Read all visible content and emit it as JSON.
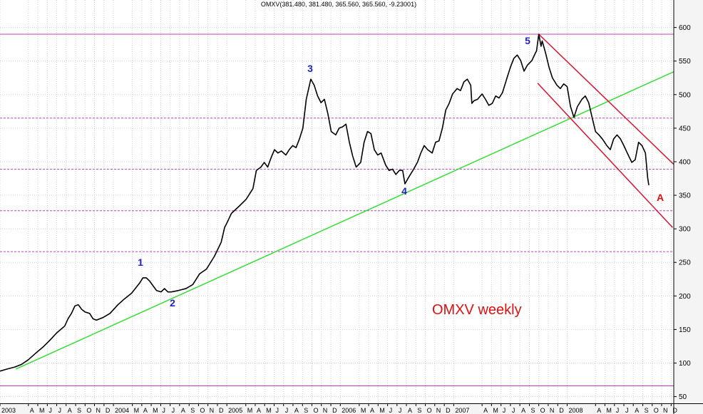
{
  "chart_data": {
    "type": "line",
    "header": "OMXV(381.480, 381.480, 365.560, 365.560, -9.23001)",
    "note": "OMXV weekly",
    "color": "#000000",
    "grid": true,
    "xlim": [
      2003,
      2008.94
    ],
    "ylim": [
      40,
      641
    ],
    "yticks": [
      50,
      100,
      150,
      200,
      250,
      300,
      350,
      400,
      450,
      500,
      550,
      600
    ],
    "xticks": [
      {
        "value": 2003,
        "label": "2003"
      },
      {
        "value": 2003.25,
        "label": "A"
      },
      {
        "value": 2003.333,
        "label": "M"
      },
      {
        "value": 2003.417,
        "label": "J"
      },
      {
        "value": 2003.5,
        "label": "J"
      },
      {
        "value": 2003.583,
        "label": "A"
      },
      {
        "value": 2003.667,
        "label": "S"
      },
      {
        "value": 2003.75,
        "label": "O"
      },
      {
        "value": 2003.833,
        "label": "N"
      },
      {
        "value": 2003.917,
        "label": "D"
      },
      {
        "value": 2004,
        "label": "2004"
      },
      {
        "value": 2004.167,
        "label": "M"
      },
      {
        "value": 2004.25,
        "label": "A"
      },
      {
        "value": 2004.333,
        "label": "M"
      },
      {
        "value": 2004.417,
        "label": "J"
      },
      {
        "value": 2004.5,
        "label": "J"
      },
      {
        "value": 2004.583,
        "label": "A"
      },
      {
        "value": 2004.667,
        "label": "S"
      },
      {
        "value": 2004.75,
        "label": "O"
      },
      {
        "value": 2004.833,
        "label": "N"
      },
      {
        "value": 2004.917,
        "label": "D"
      },
      {
        "value": 2005,
        "label": "2005"
      },
      {
        "value": 2005.167,
        "label": "M"
      },
      {
        "value": 2005.25,
        "label": "A"
      },
      {
        "value": 2005.333,
        "label": "M"
      },
      {
        "value": 2005.417,
        "label": "J"
      },
      {
        "value": 2005.5,
        "label": "J"
      },
      {
        "value": 2005.583,
        "label": "A"
      },
      {
        "value": 2005.667,
        "label": "S"
      },
      {
        "value": 2005.75,
        "label": "O"
      },
      {
        "value": 2005.833,
        "label": "N"
      },
      {
        "value": 2005.917,
        "label": "D"
      },
      {
        "value": 2006,
        "label": "2006"
      },
      {
        "value": 2006.167,
        "label": "M"
      },
      {
        "value": 2006.25,
        "label": "A"
      },
      {
        "value": 2006.333,
        "label": "M"
      },
      {
        "value": 2006.417,
        "label": "J"
      },
      {
        "value": 2006.5,
        "label": "J"
      },
      {
        "value": 2006.583,
        "label": "A"
      },
      {
        "value": 2006.667,
        "label": "S"
      },
      {
        "value": 2006.75,
        "label": "O"
      },
      {
        "value": 2006.833,
        "label": "N"
      },
      {
        "value": 2006.917,
        "label": "D"
      },
      {
        "value": 2007,
        "label": "2007"
      },
      {
        "value": 2007.25,
        "label": "A"
      },
      {
        "value": 2007.333,
        "label": "M"
      },
      {
        "value": 2007.417,
        "label": "J"
      },
      {
        "value": 2007.5,
        "label": "J"
      },
      {
        "value": 2007.583,
        "label": "A"
      },
      {
        "value": 2007.667,
        "label": "S"
      },
      {
        "value": 2007.75,
        "label": "O"
      },
      {
        "value": 2007.833,
        "label": "N"
      },
      {
        "value": 2007.917,
        "label": "D"
      },
      {
        "value": 2008,
        "label": "2008"
      },
      {
        "value": 2008.25,
        "label": "A"
      },
      {
        "value": 2008.333,
        "label": "M"
      },
      {
        "value": 2008.417,
        "label": "J"
      },
      {
        "value": 2008.5,
        "label": "J"
      },
      {
        "value": 2008.583,
        "label": "A"
      },
      {
        "value": 2008.667,
        "label": "S"
      },
      {
        "value": 2008.75,
        "label": "O"
      },
      {
        "value": 2008.833,
        "label": "N"
      },
      {
        "value": 2008.917,
        "label": "D"
      }
    ],
    "x": [
      2003.0,
      2003.06,
      2003.13,
      2003.19,
      2003.25,
      2003.31,
      2003.38,
      2003.44,
      2003.5,
      2003.57,
      2003.6,
      2003.63,
      2003.66,
      2003.69,
      2003.72,
      2003.75,
      2003.79,
      2003.82,
      2003.85,
      2003.91,
      2003.97,
      2004.04,
      2004.1,
      2004.16,
      2004.23,
      2004.26,
      2004.29,
      2004.32,
      2004.35,
      2004.38,
      2004.42,
      2004.45,
      2004.48,
      2004.51,
      2004.57,
      2004.64,
      2004.7,
      2004.76,
      2004.82,
      2004.89,
      2004.95,
      2004.98,
      2005.01,
      2005.04,
      2005.11,
      2005.17,
      2005.23,
      2005.26,
      2005.3,
      2005.33,
      2005.36,
      2005.39,
      2005.42,
      2005.45,
      2005.48,
      2005.52,
      2005.55,
      2005.58,
      2005.61,
      2005.64,
      2005.67,
      2005.7,
      2005.74,
      2005.77,
      2005.8,
      2005.83,
      2005.86,
      2005.89,
      2005.92,
      2005.96,
      2005.99,
      2006.02,
      2006.05,
      2006.08,
      2006.11,
      2006.14,
      2006.18,
      2006.21,
      2006.24,
      2006.27,
      2006.3,
      2006.33,
      2006.36,
      2006.4,
      2006.43,
      2006.46,
      2006.49,
      2006.52,
      2006.55,
      2006.57,
      2006.6,
      2006.64,
      2006.68,
      2006.71,
      2006.74,
      2006.77,
      2006.81,
      2006.84,
      2006.87,
      2006.9,
      2006.93,
      2006.96,
      2006.99,
      2007.03,
      2007.06,
      2007.09,
      2007.12,
      2007.15,
      2007.16,
      2007.18,
      2007.21,
      2007.25,
      2007.28,
      2007.31,
      2007.34,
      2007.37,
      2007.4,
      2007.43,
      2007.47,
      2007.5,
      2007.53,
      2007.56,
      2007.59,
      2007.62,
      2007.65,
      2007.69,
      2007.72,
      2007.73,
      2007.75,
      2007.77,
      2007.78,
      2007.81,
      2007.84,
      2007.87,
      2007.91,
      2007.94,
      2007.97,
      2008.0,
      2008.03,
      2008.06,
      2008.09,
      2008.13,
      2008.16,
      2008.19,
      2008.22,
      2008.25,
      2008.28,
      2008.31,
      2008.35,
      2008.38,
      2008.41,
      2008.44,
      2008.47,
      2008.5,
      2008.53,
      2008.57,
      2008.6,
      2008.63,
      2008.66,
      2008.69,
      2008.71,
      2008.72
    ],
    "values": [
      88,
      91,
      94,
      98,
      105,
      114,
      124,
      134,
      145,
      155,
      166,
      174,
      185,
      187,
      180,
      176,
      174,
      166,
      164,
      168,
      174,
      187,
      196,
      204,
      219,
      227,
      227,
      222,
      215,
      208,
      206,
      211,
      206,
      206,
      208,
      211,
      217,
      233,
      240,
      259,
      280,
      302,
      312,
      323,
      334,
      344,
      360,
      387,
      392,
      399,
      392,
      406,
      418,
      413,
      416,
      410,
      418,
      424,
      421,
      434,
      450,
      493,
      523,
      514,
      498,
      488,
      493,
      472,
      445,
      440,
      450,
      452,
      456,
      429,
      408,
      392,
      399,
      429,
      445,
      442,
      418,
      410,
      413,
      395,
      387,
      389,
      381,
      387,
      387,
      367,
      376,
      387,
      399,
      413,
      424,
      418,
      413,
      429,
      431,
      450,
      477,
      487,
      501,
      509,
      506,
      519,
      523,
      514,
      487,
      491,
      493,
      501,
      493,
      484,
      487,
      498,
      495,
      503,
      525,
      541,
      554,
      559,
      551,
      535,
      544,
      551,
      562,
      565,
      590,
      572,
      580,
      562,
      541,
      525,
      514,
      509,
      516,
      512,
      482,
      466,
      482,
      493,
      498,
      488,
      466,
      445,
      440,
      434,
      424,
      418,
      434,
      440,
      434,
      424,
      413,
      399,
      403,
      429,
      424,
      413,
      376,
      365
    ],
    "levels": [
      {
        "value": 590,
        "style": "solid",
        "color": "#c040c0"
      },
      {
        "value": 465,
        "style": "dashed",
        "color": "#c040c0"
      },
      {
        "value": 389,
        "style": "dashed",
        "color": "#c040c0"
      },
      {
        "value": 327,
        "style": "dashed",
        "color": "#c040c0"
      },
      {
        "value": 266,
        "style": "dashed",
        "color": "#c040c0"
      },
      {
        "value": 66,
        "style": "solid",
        "color": "#c040c0"
      }
    ],
    "trendlines": [
      {
        "color": "#33dd33",
        "x": [
          2003.14,
          2009.2
        ],
        "y": [
          91,
          554
        ]
      },
      {
        "color": "#e01030",
        "x": [
          2007.75,
          2009.1
        ],
        "y": [
          590,
          370
        ]
      },
      {
        "color": "#e01030",
        "x": [
          2007.74,
          2008.93
        ],
        "y": [
          517,
          302
        ]
      }
    ],
    "annotations": [
      {
        "text": "1",
        "color": "#2020c8"
      },
      {
        "text": "2",
        "color": "#2020c8"
      },
      {
        "text": "3",
        "color": "#2020c8"
      },
      {
        "text": "4",
        "color": "#2020c8"
      },
      {
        "text": "5",
        "color": "#2020c8"
      },
      {
        "text": "A",
        "color": "#e01010"
      }
    ]
  }
}
